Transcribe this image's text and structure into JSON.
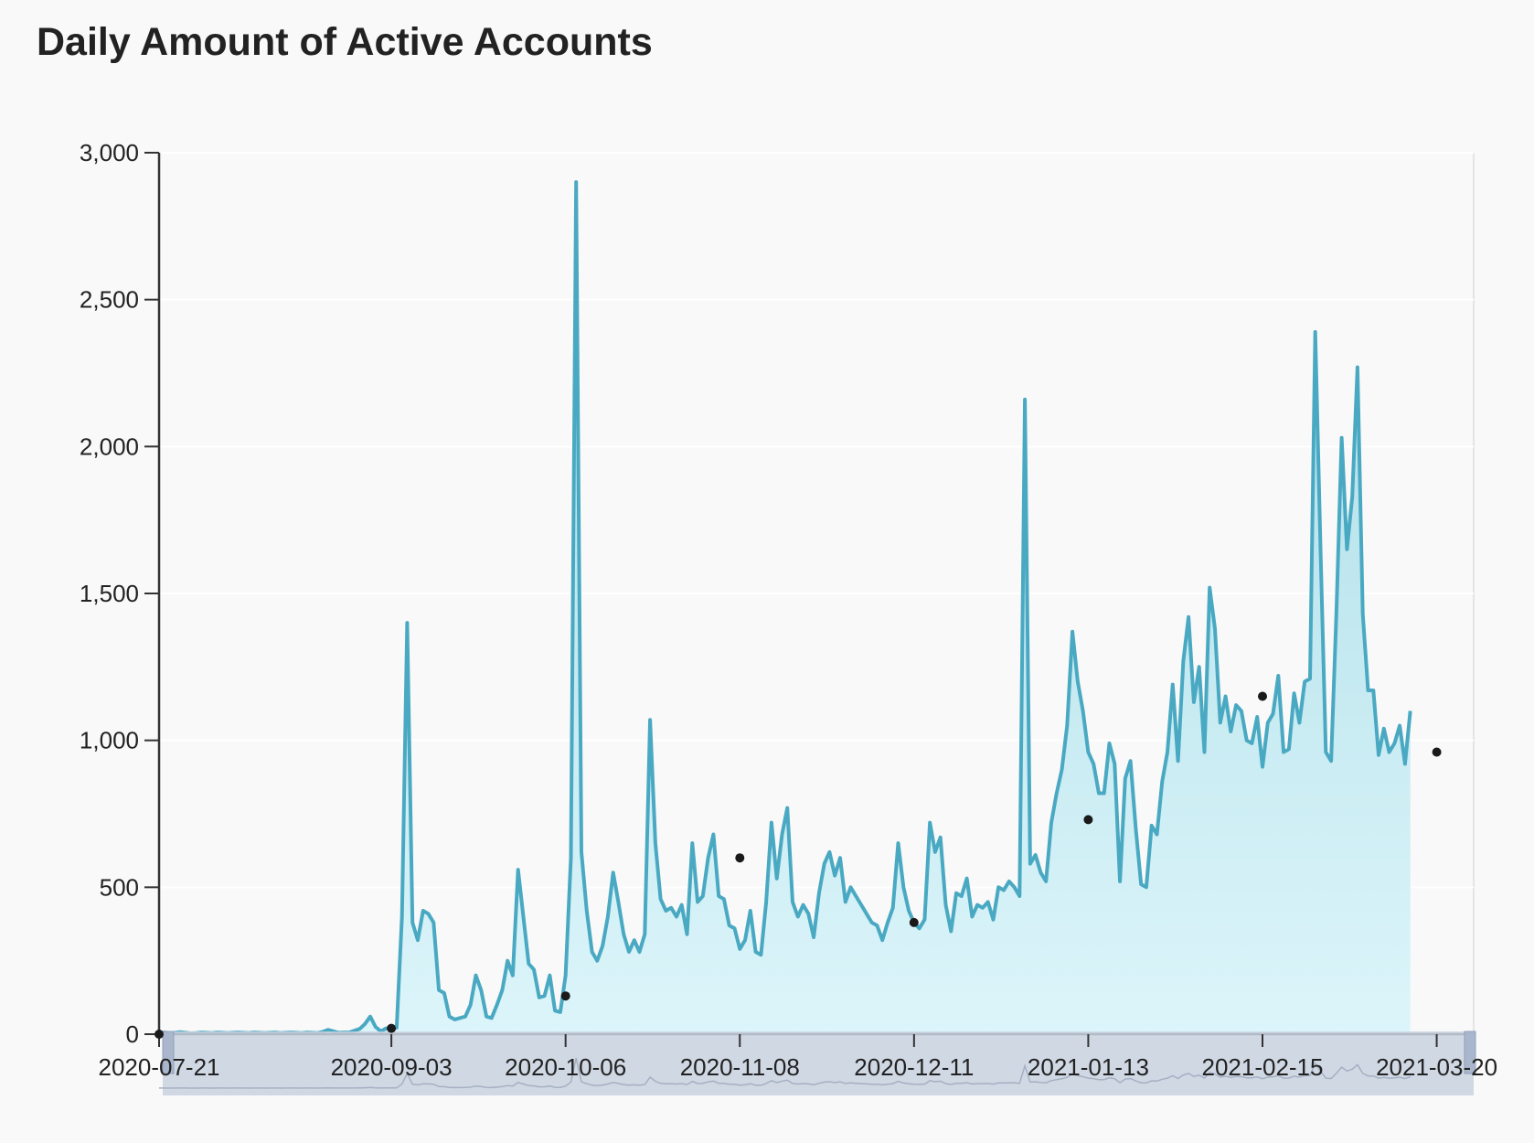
{
  "chart_data": {
    "type": "area",
    "title": "Daily Amount of Active Accounts",
    "xlabel": "",
    "ylabel": "",
    "x_tick_labels": [
      "2020-07-21",
      "2020-09-03",
      "2020-10-06",
      "2020-11-08",
      "2020-12-11",
      "2021-01-13",
      "2021-02-15",
      "2021-03-20"
    ],
    "y_tick_labels": [
      "0",
      "500",
      "1,000",
      "1,500",
      "2,000",
      "2,500",
      "3,000"
    ],
    "ylim": [
      0,
      3000
    ],
    "xlim": [
      "2020-07-21",
      "2021-03-27"
    ],
    "grid": "horizontal",
    "data_zoom_slider": true,
    "colors": {
      "line": "#4aa9c2",
      "fill_top": "#a8dbe6",
      "fill_bottom": "#dcf5fa",
      "marker": "#1a1a1a",
      "slider": "#c9d2e0"
    },
    "series": [
      {
        "x_start": "2020-07-21",
        "values": [
          5,
          6,
          4,
          5,
          7,
          5,
          3,
          4,
          6,
          5,
          4,
          6,
          5,
          4,
          5,
          6,
          5,
          4,
          6,
          5,
          4,
          5,
          6,
          4,
          5,
          6,
          5,
          4,
          6,
          5,
          4,
          8,
          15,
          10,
          5,
          6,
          6,
          12,
          18,
          35,
          60,
          25,
          10,
          20,
          18,
          22,
          400,
          1400,
          380,
          320,
          420,
          410,
          380,
          150,
          140,
          60,
          50,
          55,
          60,
          100,
          200,
          150,
          60,
          55,
          100,
          150,
          250,
          200,
          560,
          400,
          240,
          220,
          125,
          130,
          200,
          80,
          75,
          200,
          600,
          2900,
          620,
          420,
          280,
          250,
          300,
          400,
          550,
          450,
          340,
          280,
          320,
          280,
          340,
          1070,
          650,
          460,
          420,
          430,
          400,
          440,
          340,
          650,
          450,
          470,
          600,
          680,
          470,
          460,
          370,
          360,
          290,
          320,
          420,
          280,
          270,
          450,
          720,
          530,
          680,
          770,
          450,
          400,
          440,
          410,
          330,
          480,
          580,
          620,
          540,
          600,
          450,
          500,
          470,
          440,
          410,
          380,
          370,
          320,
          380,
          430,
          650,
          500,
          420,
          380,
          360,
          390,
          720,
          620,
          670,
          440,
          350,
          480,
          470,
          530,
          400,
          440,
          430,
          450,
          390,
          500,
          490,
          520,
          500,
          470,
          2160,
          580,
          610,
          550,
          520,
          720,
          820,
          900,
          1050,
          1370,
          1200,
          1100,
          960,
          920,
          820,
          820,
          990,
          920,
          520,
          870,
          930,
          700,
          510,
          500,
          710,
          680,
          860,
          960,
          1190,
          930,
          1270,
          1420,
          1130,
          1250,
          960,
          1520,
          1380,
          1060,
          1150,
          1030,
          1120,
          1100,
          1000,
          990,
          1080,
          910,
          1060,
          1090,
          1220,
          960,
          970,
          1160,
          1060,
          1200,
          1210,
          2390,
          1650,
          960,
          930,
          1430,
          2030,
          1650,
          1830,
          2270,
          1430,
          1170,
          1170,
          950,
          1040,
          960,
          990,
          1050,
          920,
          1100
        ]
      }
    ],
    "markers": [
      {
        "x": "2020-07-21",
        "y": 0
      },
      {
        "x": "2020-09-03",
        "y": 20
      },
      {
        "x": "2020-10-06",
        "y": 130
      },
      {
        "x": "2020-11-08",
        "y": 600
      },
      {
        "x": "2020-12-11",
        "y": 380
      },
      {
        "x": "2021-01-13",
        "y": 730
      },
      {
        "x": "2021-02-15",
        "y": 1150
      },
      {
        "x": "2021-03-20",
        "y": 960
      }
    ]
  }
}
